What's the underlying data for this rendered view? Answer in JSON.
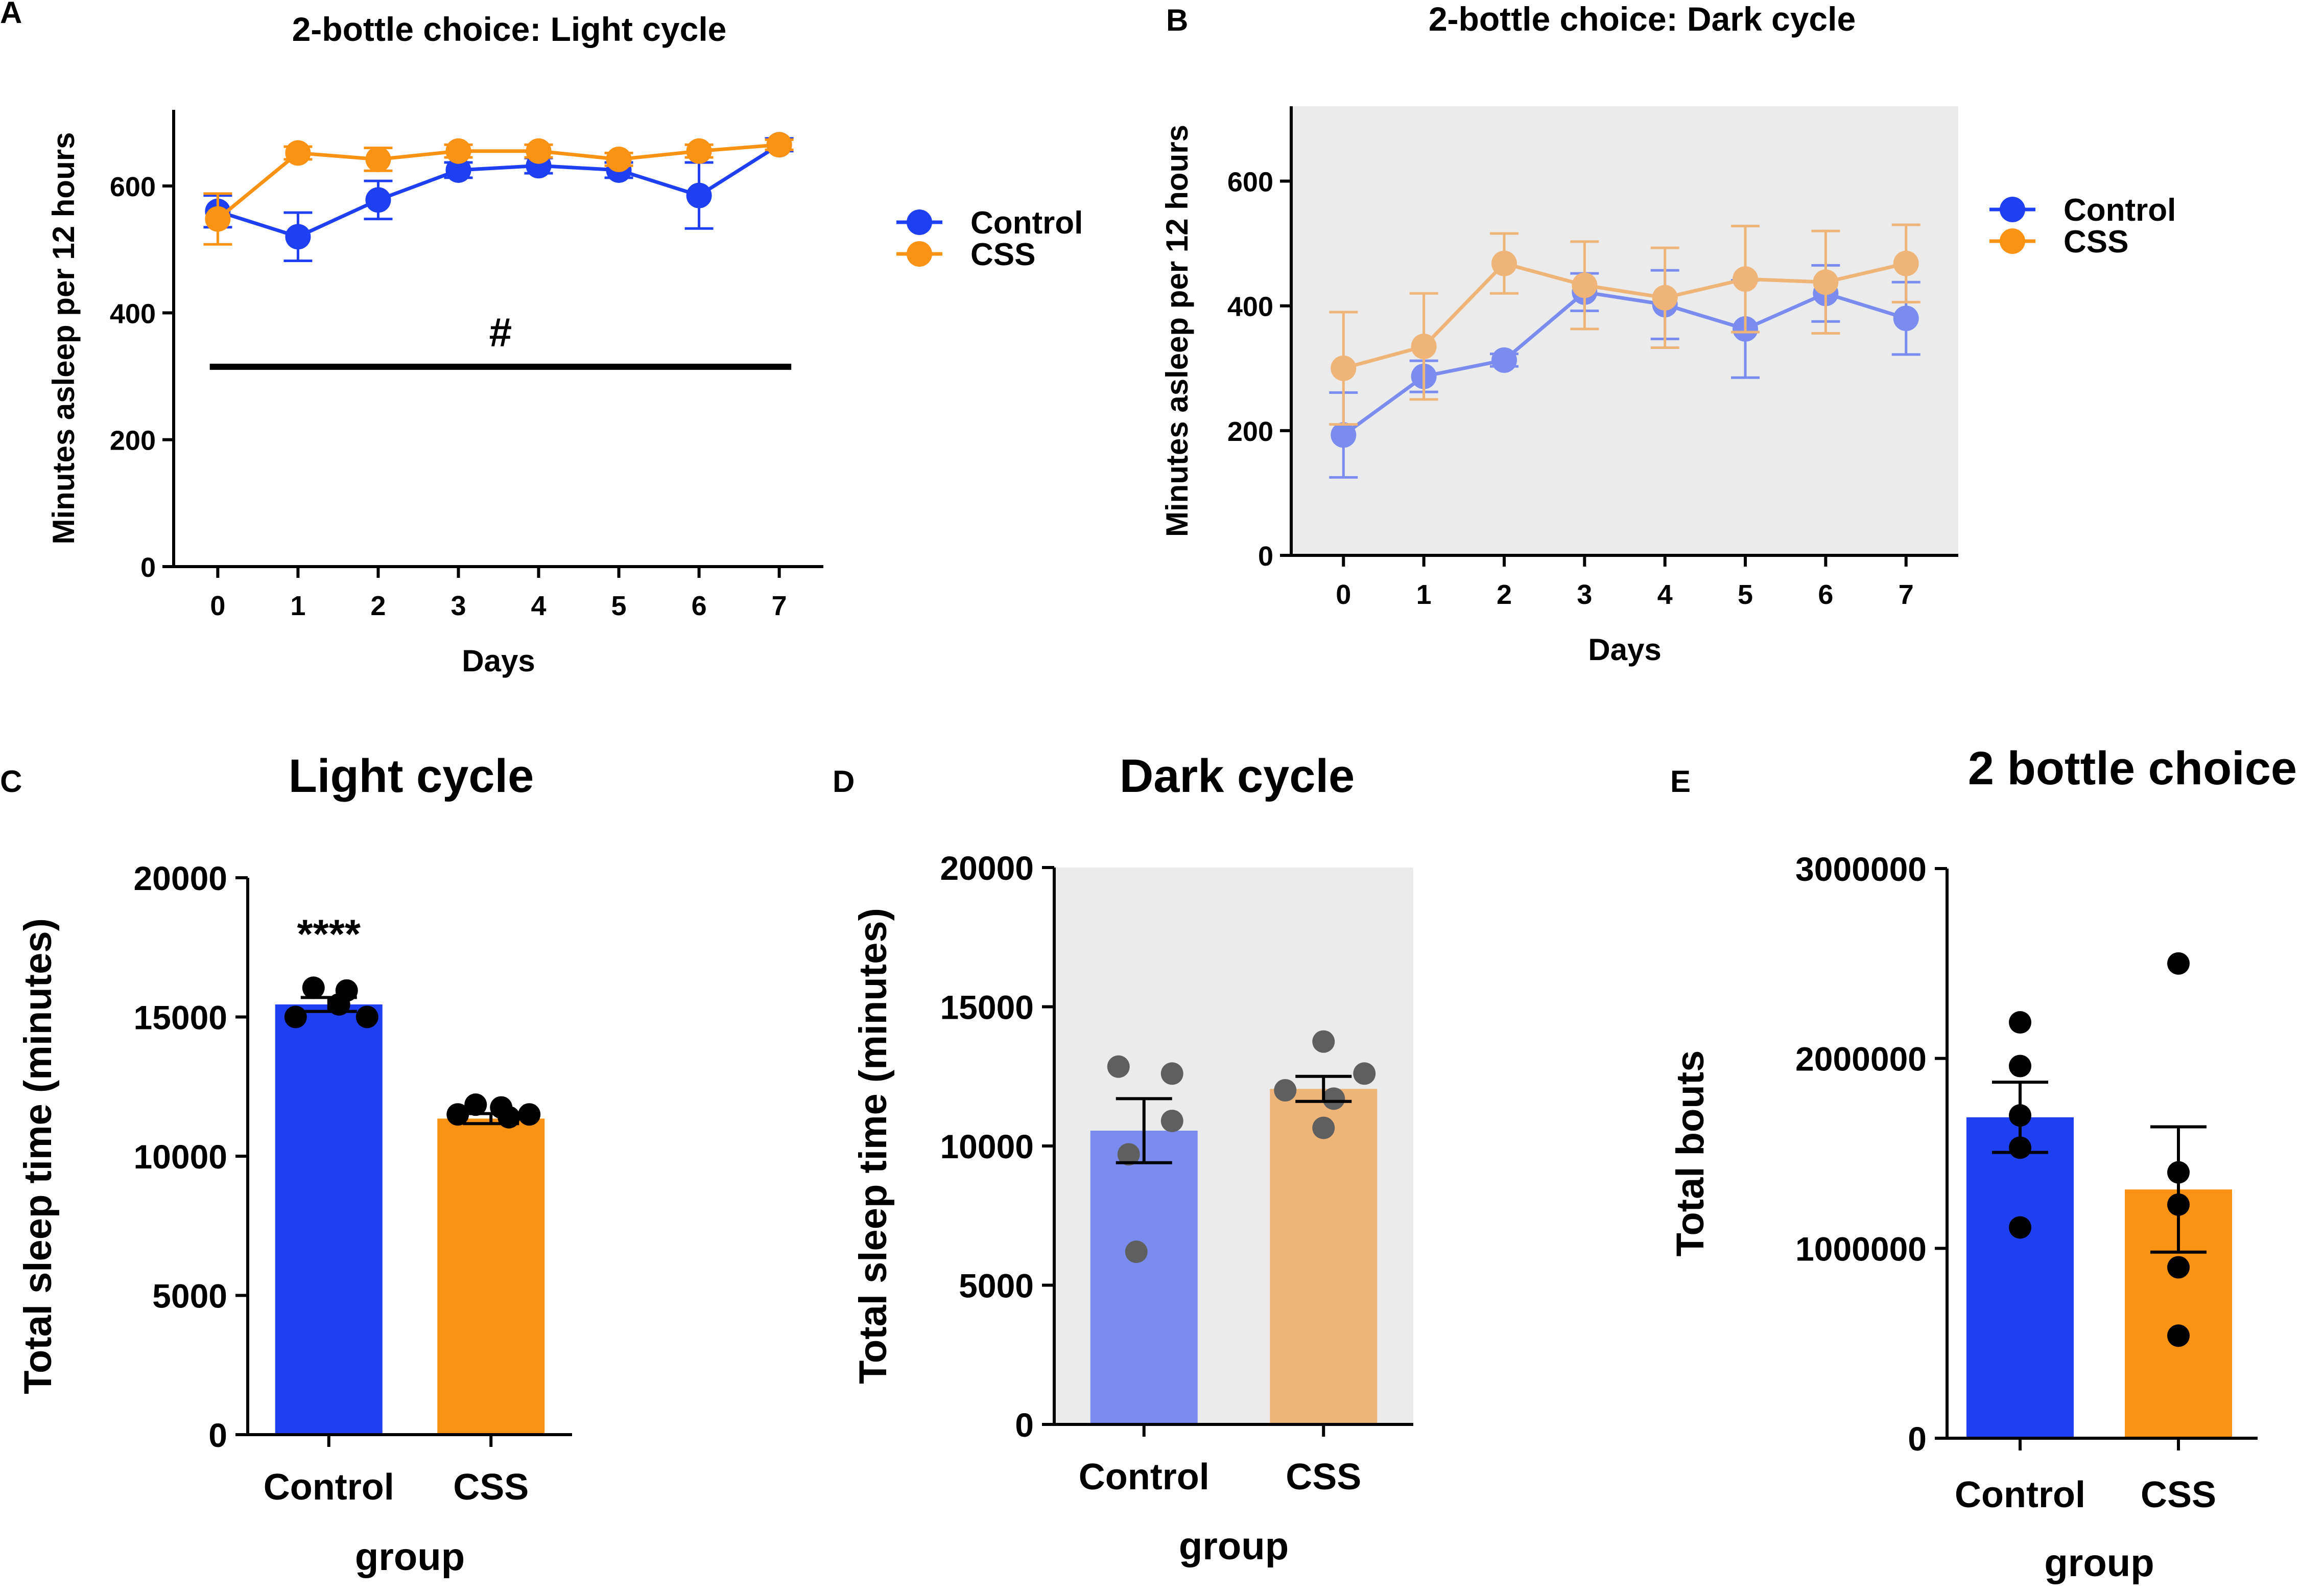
{
  "colors": {
    "control": "#1f3ff2",
    "css": "#fa9214",
    "control_faded": "#7b8cef",
    "css_faded": "#eeb478",
    "shade": "#ebebeb",
    "dot_light": "#000000",
    "dot_dark": "#5f5f5f",
    "axis": "#000000"
  },
  "chart_data": [
    {
      "id": "A",
      "panel_label": "A",
      "type": "line",
      "title": "2-bottle choice: Light cycle",
      "xlabel": "Days",
      "ylabel": "Minutes asleep per 12 hours",
      "x": [
        0,
        1,
        2,
        3,
        4,
        5,
        6,
        7
      ],
      "xlim": [
        -0.55,
        7.55
      ],
      "ylim": [
        0,
        720
      ],
      "yticks": [
        0,
        200,
        400,
        600
      ],
      "shaded": false,
      "faded": false,
      "legend": [
        "Control",
        "CSS"
      ],
      "legend_position": "right",
      "annotation": {
        "text": "#",
        "line_x": [
          -0.1,
          7.15
        ],
        "line_y": 315,
        "text_y": 355
      },
      "series": [
        {
          "name": "Control",
          "values": [
            560,
            520,
            578,
            625,
            632,
            625,
            585,
            665
          ],
          "errors": [
            25,
            38,
            30,
            12,
            12,
            12,
            52,
            10
          ]
        },
        {
          "name": "CSS",
          "values": [
            548,
            652,
            642,
            655,
            655,
            642,
            655,
            665
          ],
          "errors": [
            40,
            10,
            18,
            10,
            10,
            10,
            10,
            8
          ]
        }
      ]
    },
    {
      "id": "B",
      "panel_label": "B",
      "type": "line",
      "title": "2-bottle choice: Dark cycle",
      "xlabel": "Days",
      "ylabel": "Minutes asleep per 12 hours",
      "x": [
        0,
        1,
        2,
        3,
        4,
        5,
        6,
        7
      ],
      "xlim": [
        -0.65,
        7.65
      ],
      "ylim": [
        0,
        720
      ],
      "yticks": [
        0,
        200,
        400,
        600
      ],
      "shaded": true,
      "faded": true,
      "legend": [
        "Control",
        "CSS"
      ],
      "legend_position": "right",
      "series": [
        {
          "name": "Control",
          "values": [
            193,
            287,
            313,
            422,
            402,
            363,
            420,
            380
          ],
          "errors": [
            68,
            25,
            10,
            30,
            55,
            78,
            45,
            58
          ]
        },
        {
          "name": "CSS",
          "values": [
            300,
            335,
            468,
            433,
            413,
            443,
            438,
            468
          ],
          "errors": [
            90,
            85,
            48,
            70,
            80,
            85,
            82,
            62
          ]
        }
      ]
    },
    {
      "id": "C",
      "panel_label": "C",
      "type": "bar",
      "title": "Light cycle",
      "xlabel": "group",
      "ylabel": "Total sleep time (minutes)",
      "categories": [
        "Control",
        "CSS"
      ],
      "values": [
        15450,
        11350
      ],
      "errors": [
        250,
        180
      ],
      "ylim": [
        0,
        20000
      ],
      "yticks": [
        0,
        5000,
        10000,
        15000,
        20000
      ],
      "shaded": false,
      "faded": false,
      "annotation": {
        "text": "****",
        "y": 18300
      },
      "points": [
        [
          15000,
          16050,
          15450,
          15950,
          15000
        ],
        [
          11500,
          11850,
          11750,
          11400,
          11500
        ]
      ]
    },
    {
      "id": "D",
      "panel_label": "D",
      "type": "bar",
      "title": "Dark cycle",
      "xlabel": "group",
      "ylabel": "Total sleep time (minutes)",
      "categories": [
        "Control",
        "CSS"
      ],
      "values": [
        10550,
        12050
      ],
      "errors": [
        1150,
        450
      ],
      "ylim": [
        0,
        20000
      ],
      "yticks": [
        0,
        5000,
        10000,
        15000,
        20000
      ],
      "shaded": true,
      "faded": true,
      "points": [
        [
          12850,
          10900,
          12600,
          6200,
          9700
        ],
        [
          12000,
          13750,
          12600,
          10650,
          11700
        ]
      ]
    },
    {
      "id": "E",
      "panel_label": "E",
      "type": "bar",
      "title": "2 bottle choice",
      "xlabel": "group",
      "ylabel": "Total bouts",
      "categories": [
        "Control",
        "CSS"
      ],
      "values": [
        1690000,
        1310000
      ],
      "errors": [
        185000,
        330000
      ],
      "ylim": [
        0,
        3000000
      ],
      "yticks": [
        0,
        1000000,
        2000000,
        3000000
      ],
      "shaded": false,
      "faded": false,
      "points": [
        [
          2190000,
          1960000,
          1700000,
          1530000,
          1110000
        ],
        [
          2500000,
          1400000,
          1230000,
          900000,
          540000
        ]
      ]
    }
  ]
}
